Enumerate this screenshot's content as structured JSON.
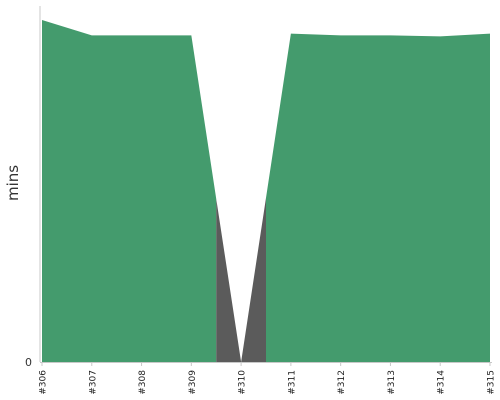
{
  "chart_data": {
    "type": "area",
    "title": "",
    "xlabel": "",
    "ylabel": "mins",
    "categories": [
      "#306",
      "#307",
      "#308",
      "#309",
      "#310",
      "#311",
      "#312",
      "#313",
      "#314",
      "#315"
    ],
    "values": [
      1.0,
      0.955,
      0.955,
      0.955,
      0.0,
      0.96,
      0.955,
      0.955,
      0.952,
      0.96
    ],
    "ylim": [
      0,
      1.0
    ],
    "y_ticks": [
      "0"
    ],
    "grid": false,
    "legend": "none",
    "series_colors": {
      "success": "#449b6d",
      "failure": "#5b5b5b"
    }
  }
}
